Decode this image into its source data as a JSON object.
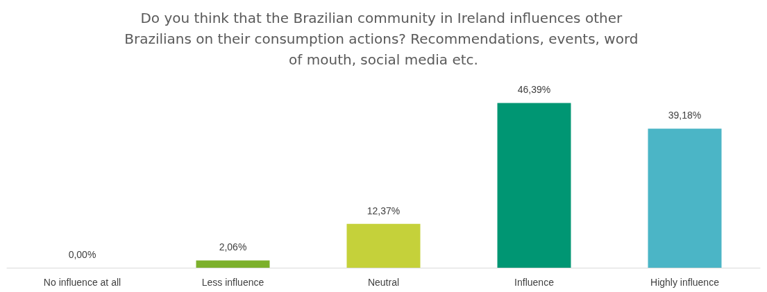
{
  "chart_data": {
    "type": "bar",
    "title": "Do you think that the Brazilian community in Ireland influences other Brazilians on their consumption actions? Recommendations, events, word of mouth, social media etc.",
    "categories": [
      "No influence at all",
      "Less influence",
      "Neutral",
      "Influence",
      "Highly influence"
    ],
    "values": [
      0,
      2.06,
      12.37,
      46.39,
      39.18
    ],
    "value_labels": [
      "0,00%",
      "2,06%",
      "12,37%",
      "46,39%",
      "39,18%"
    ],
    "colors": [
      "#7cb02c",
      "#7cb02c",
      "#c5d13a",
      "#009673",
      "#4bb5c6"
    ]
  }
}
